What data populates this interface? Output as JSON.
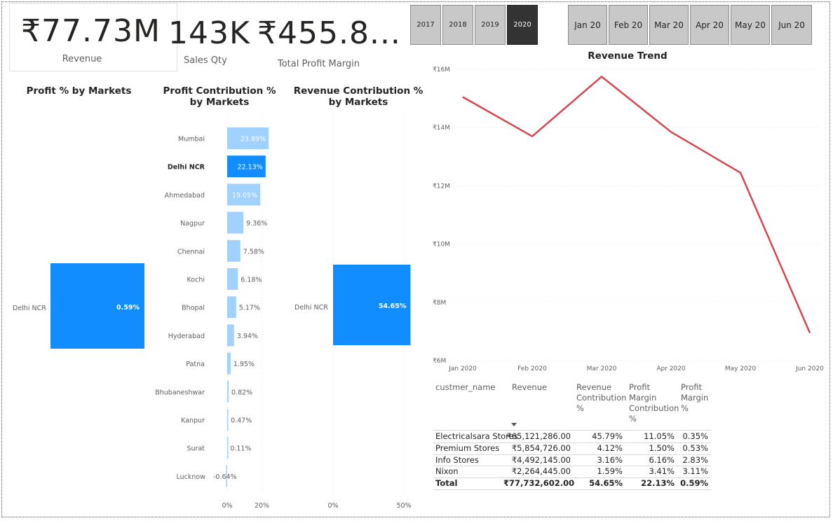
{
  "kpis": {
    "revenue": {
      "value": "₹77.73M",
      "label": "Revenue"
    },
    "sales_qty": {
      "value": "143K",
      "label": "Sales Qty"
    },
    "profit_margin": {
      "value": "₹455.8...",
      "label": "Total Profit Margin"
    }
  },
  "year_slicer": {
    "options": [
      "2017",
      "2018",
      "2019",
      "2020"
    ],
    "selected": "2020"
  },
  "month_slicer": {
    "options": [
      "Jan 20",
      "Feb 20",
      "Mar 20",
      "Apr 20",
      "May 20",
      "Jun 20"
    ]
  },
  "colors": {
    "primary_bar": "#118dff",
    "light_bar": "#a0d1ff",
    "line": "#d64550",
    "selected_slicer": "#333333"
  },
  "charts": {
    "profit_pct": {
      "title": "Profit % by Markets"
    },
    "profit_contribution": {
      "title": "Profit Contribution % by Markets"
    },
    "revenue_contribution": {
      "title": "Revenue Contribution % by Markets"
    },
    "revenue_trend": {
      "title": "Revenue Trend"
    }
  },
  "chart_data": [
    {
      "type": "bar",
      "orientation": "horizontal",
      "title": "Profit % by Markets",
      "categories": [
        "Delhi NCR"
      ],
      "values": [
        0.59
      ],
      "data_labels": [
        "0.59%"
      ]
    },
    {
      "type": "bar",
      "orientation": "horizontal",
      "title": "Profit Contribution % by Markets",
      "categories": [
        "Mumbai",
        "Delhi NCR",
        "Ahmedabad",
        "Nagpur",
        "Chennai",
        "Kochi",
        "Bhopal",
        "Hyderabad",
        "Patna",
        "Bhubaneshwar",
        "Kanpur",
        "Surat",
        "Lucknow"
      ],
      "values": [
        23.89,
        22.13,
        19.05,
        9.36,
        7.58,
        6.18,
        5.17,
        3.94,
        1.95,
        0.82,
        0.47,
        0.11,
        -0.64
      ],
      "data_labels": [
        "23.89%",
        "22.13%",
        "19.05%",
        "9.36%",
        "7.58%",
        "6.18%",
        "5.17%",
        "3.94%",
        "1.95%",
        "0.82%",
        "0.47%",
        "0.11%",
        "-0.64%"
      ],
      "highlighted": "Delhi NCR",
      "x_ticks": [
        "0%",
        "20%"
      ]
    },
    {
      "type": "bar",
      "orientation": "horizontal",
      "title": "Revenue Contribution % by Markets",
      "categories": [
        "Delhi NCR"
      ],
      "values": [
        54.65
      ],
      "data_labels": [
        "54.65%"
      ],
      "x_ticks": [
        "0%",
        "50%"
      ]
    },
    {
      "type": "line",
      "title": "Revenue Trend",
      "x": [
        "Jan 2020",
        "Feb 2020",
        "Mar 2020",
        "Apr 2020",
        "May 2020",
        "Jun 2020"
      ],
      "series": [
        {
          "values": [
            15.05,
            13.7,
            15.75,
            13.85,
            12.45,
            6.95
          ]
        }
      ],
      "y_ticks": [
        "₹6M",
        "₹8M",
        "₹10M",
        "₹12M",
        "₹14M",
        "₹16M"
      ],
      "ylim": [
        6,
        16
      ],
      "grid": true
    }
  ],
  "table": {
    "headers": [
      "custmer_name",
      "Revenue",
      "Revenue Contribution %",
      "Profit Margin Contribution %",
      "Profit Margin %"
    ],
    "rows": [
      [
        "Electricalsara Stores",
        "₹65,121,286.00",
        "45.79%",
        "11.05%",
        "0.35%"
      ],
      [
        "Premium Stores",
        "₹5,854,726.00",
        "4.12%",
        "1.50%",
        "0.53%"
      ],
      [
        "Info Stores",
        "₹4,492,145.00",
        "3.16%",
        "6.16%",
        "2.83%"
      ],
      [
        "Nixon",
        "₹2,264,445.00",
        "1.59%",
        "3.41%",
        "3.11%"
      ]
    ],
    "total": [
      "Total",
      "₹77,732,602.00",
      "54.65%",
      "22.13%",
      "0.59%"
    ]
  }
}
